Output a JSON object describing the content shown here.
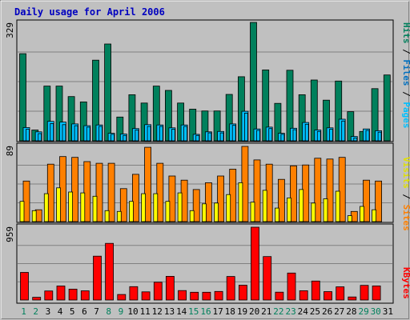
{
  "colors": {
    "background": "#c0c0c0",
    "panel": "#c0c0c0",
    "title": "#0000c0",
    "grid": "#808080",
    "hits": "#00805c",
    "files": "#00c0ff",
    "pages": "#00c0ff",
    "visits": "#ffff00",
    "sites": "#ff8000",
    "kbytes": "#ff0000",
    "weekend_label": "#00805c",
    "weekday_label": "#000000"
  },
  "chart_data": {
    "type": "bar",
    "title": "Daily usage for April 2006",
    "x": [
      "1",
      "2",
      "3",
      "4",
      "5",
      "6",
      "7",
      "8",
      "9",
      "10",
      "11",
      "12",
      "13",
      "14",
      "15",
      "16",
      "17",
      "18",
      "19",
      "20",
      "21",
      "22",
      "23",
      "24",
      "25",
      "26",
      "27",
      "28",
      "29",
      "30",
      "31"
    ],
    "weekend_days": [
      "1",
      "2",
      "8",
      "9",
      "15",
      "16",
      "22",
      "23",
      "29",
      "30"
    ],
    "panels": [
      {
        "id": "hits-files-pages",
        "max_label": "329",
        "ymax": 329,
        "legend": {
          "pages": "Pages",
          "files": "Files",
          "hits": "Hits",
          "separator": " / "
        },
        "series": [
          {
            "name": "Hits",
            "color": "#00805c",
            "values": [
              242,
              30,
              152,
              152,
              123,
              108,
              224,
              269,
              66,
              128,
              105,
              152,
              140,
              105,
              88,
              83,
              83,
              129,
              178,
              329,
              197,
              104,
              196,
              128,
              169,
              113,
              166,
              81,
              26,
              145,
              183
            ]
          },
          {
            "name": "Files",
            "color": "#00c0ff",
            "values": [
              37,
              25,
              54,
              52,
              47,
              42,
              44,
              21,
              19,
              34,
              45,
              44,
              36,
              44,
              18,
              25,
              26,
              47,
              82,
              33,
              38,
              21,
              35,
              51,
              30,
              36,
              60,
              12,
              33,
              28,
              0
            ]
          },
          {
            "name": "Pages",
            "color": "#00c0ff",
            "values": [
              32,
              20,
              48,
              45,
              42,
              38,
              40,
              18,
              15,
              30,
              40,
              40,
              32,
              40,
              15,
              22,
              22,
              43,
              77,
              29,
              34,
              18,
              31,
              46,
              26,
              32,
              55,
              8,
              29,
              24,
              0
            ]
          }
        ]
      },
      {
        "id": "visits-sites",
        "max_label": "89",
        "ymax": 89,
        "legend": {
          "sites": "Sites",
          "visits": "Visits",
          "separator": " / "
        },
        "series": [
          {
            "name": "Visits",
            "color": "#ffff00",
            "values": [
              24,
              13,
              33,
              40,
              35,
              34,
              30,
              13,
              12,
              24,
              33,
              33,
              24,
              34,
              13,
              21,
              22,
              32,
              46,
              23,
              37,
              16,
              28,
              38,
              22,
              27,
              36,
              7,
              18,
              14,
              0
            ]
          },
          {
            "name": "Sites",
            "color": "#ff8000",
            "values": [
              48,
              14,
              68,
              77,
              76,
              71,
              69,
              69,
              39,
              56,
              88,
              69,
              54,
              49,
              38,
              46,
              54,
              62,
              89,
              73,
              68,
              50,
              66,
              67,
              75,
              74,
              76,
              12,
              49,
              48,
              0
            ]
          }
        ]
      },
      {
        "id": "kbytes",
        "max_label": "959",
        "ymax": 959,
        "legend": {
          "kbytes": "KBytes"
        },
        "series": [
          {
            "name": "KBytes",
            "color": "#ff0000",
            "values": [
              364,
              36,
              119,
              184,
              143,
              121,
              577,
              746,
              73,
              176,
              108,
              234,
              312,
              124,
              102,
              102,
              113,
              310,
              195,
              959,
              572,
              103,
              355,
              122,
              250,
              111,
              174,
              40,
              193,
              186,
              0
            ]
          }
        ]
      }
    ]
  }
}
